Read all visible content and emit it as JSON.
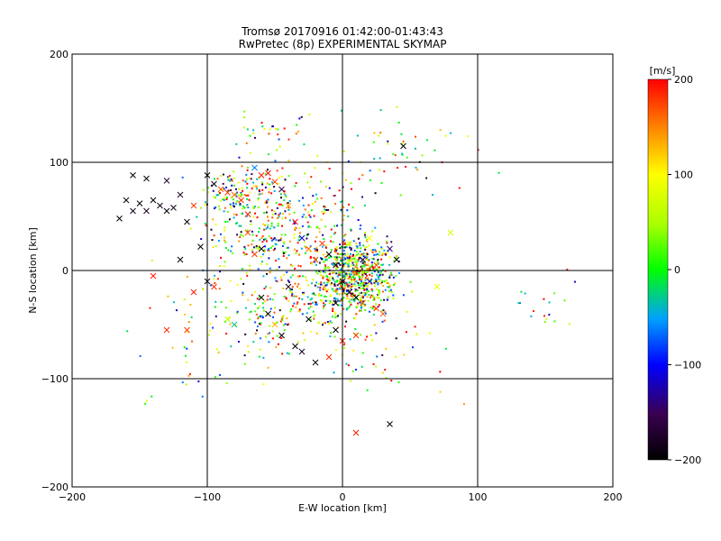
{
  "chart_data": {
    "type": "scatter",
    "title": "Tromsø 20170916 01:42:00-01:43:43",
    "subtitle": "RwPretec (8p) EXPERIMENTAL SKYMAP",
    "xlabel": "E-W location [km]",
    "ylabel": "N-S location [km]",
    "xlim": [
      -200,
      200
    ],
    "ylim": [
      -200,
      200
    ],
    "x_ticks": [
      "−200",
      "−100",
      "0",
      "100",
      "200"
    ],
    "y_ticks": [
      "−200",
      "−100",
      "0",
      "100",
      "200"
    ],
    "grid": true,
    "colorbar": {
      "label": "[m/s]",
      "range": [
        -200,
        200
      ],
      "ticks": [
        "200",
        "100",
        "0",
        "−100",
        "−200"
      ]
    },
    "cluster_centers_km": [
      [
        0,
        0
      ],
      [
        10,
        -10
      ],
      [
        -50,
        50
      ],
      [
        -40,
        10
      ],
      [
        -160,
        60
      ],
      [
        -80,
        80
      ]
    ],
    "x_markers": [
      [
        -165,
        48,
        -200
      ],
      [
        -160,
        65,
        -190
      ],
      [
        -155,
        55,
        -180
      ],
      [
        -150,
        62,
        -200
      ],
      [
        -145,
        55,
        -180
      ],
      [
        -140,
        65,
        -200
      ],
      [
        -135,
        60,
        -190
      ],
      [
        -130,
        55,
        -200
      ],
      [
        -125,
        58,
        -180
      ],
      [
        -155,
        88,
        -200
      ],
      [
        -145,
        85,
        -190
      ],
      [
        -130,
        83,
        -170
      ],
      [
        -120,
        70,
        -180
      ],
      [
        -115,
        45,
        -190
      ],
      [
        -110,
        60,
        180
      ],
      [
        -105,
        22,
        -200
      ],
      [
        -100,
        88,
        -200
      ],
      [
        -95,
        80,
        -190
      ],
      [
        -90,
        75,
        170
      ],
      [
        -85,
        72,
        180
      ],
      [
        -80,
        70,
        160
      ],
      [
        -75,
        65,
        185
      ],
      [
        -70,
        52,
        190
      ],
      [
        -65,
        95,
        -60
      ],
      [
        -60,
        88,
        190
      ],
      [
        -55,
        90,
        195
      ],
      [
        -50,
        82,
        175
      ],
      [
        -45,
        75,
        -150
      ],
      [
        -40,
        60,
        140
      ],
      [
        -35,
        45,
        195
      ],
      [
        -30,
        30,
        -110
      ],
      [
        -25,
        20,
        160
      ],
      [
        -20,
        10,
        170
      ],
      [
        -15,
        25,
        180
      ],
      [
        -10,
        15,
        -200
      ],
      [
        -5,
        5,
        -190
      ],
      [
        0,
        -10,
        -200
      ],
      [
        5,
        -20,
        -180
      ],
      [
        10,
        -25,
        -190
      ],
      [
        15,
        -30,
        175
      ],
      [
        20,
        -10,
        -120
      ],
      [
        25,
        -35,
        180
      ],
      [
        30,
        -40,
        165
      ],
      [
        35,
        20,
        -140
      ],
      [
        40,
        10,
        -200
      ],
      [
        -60,
        -25,
        -200
      ],
      [
        -55,
        -40,
        -190
      ],
      [
        -50,
        -50,
        130
      ],
      [
        -45,
        -60,
        -200
      ],
      [
        -35,
        -70,
        -200
      ],
      [
        -30,
        -75,
        -180
      ],
      [
        -20,
        -85,
        -200
      ],
      [
        -10,
        -80,
        185
      ],
      [
        0,
        -65,
        190
      ],
      [
        -5,
        -55,
        -200
      ],
      [
        -85,
        -45,
        60
      ],
      [
        -80,
        -50,
        -30
      ],
      [
        -95,
        -15,
        185
      ],
      [
        -110,
        -20,
        190
      ],
      [
        -115,
        -55,
        180
      ],
      [
        -140,
        -5,
        190
      ],
      [
        -130,
        -55,
        185
      ],
      [
        -120,
        10,
        -200
      ],
      [
        -100,
        -10,
        -180
      ],
      [
        10,
        -150,
        190
      ],
      [
        35,
        -142,
        -200
      ],
      [
        80,
        35,
        70
      ],
      [
        70,
        -15,
        90
      ],
      [
        -70,
        35,
        170
      ],
      [
        -65,
        15,
        180
      ],
      [
        5,
        25,
        90
      ],
      [
        20,
        30,
        100
      ],
      [
        15,
        10,
        -150
      ],
      [
        25,
        5,
        170
      ],
      [
        -5,
        -30,
        -200
      ],
      [
        -40,
        -15,
        -180
      ],
      [
        -25,
        -45,
        -200
      ],
      [
        10,
        -60,
        180
      ],
      [
        45,
        115,
        -200
      ],
      [
        -60,
        20,
        -200
      ]
    ]
  }
}
